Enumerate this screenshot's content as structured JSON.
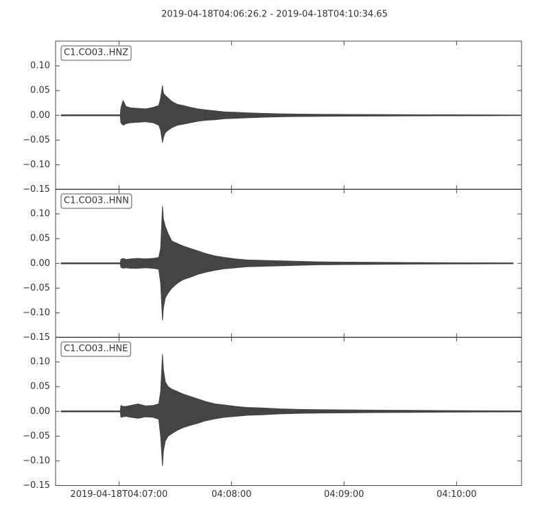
{
  "title": "2019-04-18T04:06:26.2  -  2019-04-18T04:10:34.65",
  "chart_data": [
    {
      "type": "waveform",
      "title": "C1.CO03..HNZ",
      "color": "#444444",
      "x": [
        3,
        34.5,
        34.8,
        36,
        37.5,
        40,
        44,
        48,
        52,
        55,
        56,
        57,
        57.5,
        58.5,
        60,
        62,
        65,
        68,
        72,
        76,
        80,
        85,
        90,
        96,
        102,
        110,
        120,
        130,
        140,
        155,
        170,
        190,
        210,
        230,
        248
      ],
      "upper": [
        0.001,
        0.001,
        0.015,
        0.03,
        0.018,
        0.015,
        0.014,
        0.013,
        0.016,
        0.02,
        0.035,
        0.06,
        0.045,
        0.04,
        0.035,
        0.028,
        0.022,
        0.02,
        0.016,
        0.013,
        0.011,
        0.009,
        0.007,
        0.006,
        0.005,
        0.004,
        0.003,
        0.0025,
        0.002,
        0.0018,
        0.0015,
        0.0012,
        0.001,
        0.0008,
        0.0005
      ],
      "lower": [
        -0.001,
        -0.001,
        -0.015,
        -0.02,
        -0.017,
        -0.015,
        -0.014,
        -0.013,
        -0.015,
        -0.02,
        -0.03,
        -0.055,
        -0.045,
        -0.035,
        -0.03,
        -0.025,
        -0.02,
        -0.018,
        -0.015,
        -0.012,
        -0.01,
        -0.009,
        -0.007,
        -0.006,
        -0.005,
        -0.004,
        -0.003,
        -0.0025,
        -0.002,
        -0.0018,
        -0.0015,
        -0.0012,
        -0.001,
        -0.0008,
        -0.0005
      ],
      "xlim": [
        0,
        248.45
      ],
      "xticks": [
        33.8,
        93.8,
        153.8,
        213.8
      ],
      "ylim": [
        -0.15,
        0.15
      ],
      "yticks": [
        {
          "value": -0.15,
          "label": "−0.15"
        },
        {
          "value": -0.1,
          "label": "−0.10"
        },
        {
          "value": -0.05,
          "label": "−0.05"
        },
        {
          "value": 0,
          "label": "0.00"
        },
        {
          "value": 0.05,
          "label": "0.05"
        },
        {
          "value": 0.1,
          "label": "0.10"
        }
      ]
    },
    {
      "type": "waveform",
      "title": "C1.CO03..HNN",
      "color": "#444444",
      "x": [
        3,
        34.5,
        34.8,
        36,
        37.5,
        40,
        44,
        48,
        52,
        55,
        56,
        57,
        57.5,
        58.5,
        60,
        62,
        65,
        68,
        72,
        76,
        80,
        85,
        90,
        96,
        102,
        110,
        120,
        130,
        140,
        155,
        170,
        190,
        210,
        230,
        244
      ],
      "upper": [
        0.001,
        0.001,
        0.008,
        0.01,
        0.008,
        0.009,
        0.01,
        0.009,
        0.01,
        0.012,
        0.03,
        0.115,
        0.09,
        0.075,
        0.06,
        0.045,
        0.04,
        0.035,
        0.03,
        0.025,
        0.02,
        0.015,
        0.012,
        0.009,
        0.007,
        0.006,
        0.005,
        0.004,
        0.003,
        0.0025,
        0.002,
        0.0015,
        0.0012,
        0.001,
        0.0008
      ],
      "lower": [
        -0.001,
        -0.001,
        -0.008,
        -0.01,
        -0.009,
        -0.01,
        -0.01,
        -0.009,
        -0.01,
        -0.012,
        -0.04,
        -0.115,
        -0.09,
        -0.07,
        -0.06,
        -0.05,
        -0.04,
        -0.033,
        -0.028,
        -0.022,
        -0.018,
        -0.014,
        -0.011,
        -0.009,
        -0.007,
        -0.006,
        -0.005,
        -0.004,
        -0.003,
        -0.0025,
        -0.002,
        -0.0015,
        -0.0012,
        -0.001,
        -0.0008
      ],
      "xlim": [
        0,
        248.45
      ],
      "xticks": [
        33.8,
        93.8,
        153.8,
        213.8
      ],
      "ylim": [
        -0.15,
        0.15
      ],
      "yticks": [
        {
          "value": -0.15,
          "label": "−0.15"
        },
        {
          "value": -0.1,
          "label": "−0.10"
        },
        {
          "value": -0.05,
          "label": "−0.05"
        },
        {
          "value": 0,
          "label": "0.00"
        },
        {
          "value": 0.05,
          "label": "0.05"
        },
        {
          "value": 0.1,
          "label": "0.10"
        }
      ]
    },
    {
      "type": "waveform",
      "title": "C1.CO03..HNE",
      "color": "#444444",
      "x": [
        3,
        34.5,
        34.8,
        36,
        37.5,
        40,
        44,
        48,
        52,
        55,
        56,
        57,
        57.5,
        58.5,
        60,
        62,
        65,
        68,
        72,
        76,
        80,
        85,
        90,
        96,
        102,
        110,
        120,
        130,
        140,
        155,
        170,
        190,
        210,
        230,
        248
      ],
      "upper": [
        0.001,
        0.001,
        0.012,
        0.01,
        0.01,
        0.012,
        0.015,
        0.011,
        0.012,
        0.015,
        0.04,
        0.115,
        0.085,
        0.06,
        0.05,
        0.045,
        0.04,
        0.035,
        0.03,
        0.025,
        0.02,
        0.015,
        0.013,
        0.01,
        0.008,
        0.007,
        0.005,
        0.004,
        0.0035,
        0.003,
        0.0025,
        0.002,
        0.0015,
        0.0012,
        0.001
      ],
      "lower": [
        -0.001,
        -0.001,
        -0.012,
        -0.011,
        -0.01,
        -0.012,
        -0.014,
        -0.011,
        -0.012,
        -0.016,
        -0.05,
        -0.11,
        -0.08,
        -0.06,
        -0.05,
        -0.045,
        -0.038,
        -0.033,
        -0.028,
        -0.024,
        -0.019,
        -0.015,
        -0.012,
        -0.01,
        -0.008,
        -0.007,
        -0.005,
        -0.004,
        -0.0035,
        -0.003,
        -0.0025,
        -0.002,
        -0.0015,
        -0.0012,
        -0.001
      ],
      "xlim": [
        0,
        248.45
      ],
      "xticks": [
        {
          "value": 33.8,
          "label": "2019-04-18T04:07:00"
        },
        {
          "value": 93.8,
          "label": "04:08:00"
        },
        {
          "value": 153.8,
          "label": "04:09:00"
        },
        {
          "value": 213.8,
          "label": "04:10:00"
        }
      ],
      "ylim": [
        -0.15,
        0.15
      ],
      "yticks": [
        {
          "value": -0.15,
          "label": "−0.15"
        },
        {
          "value": -0.1,
          "label": "−0.10"
        },
        {
          "value": -0.05,
          "label": "−0.05"
        },
        {
          "value": 0,
          "label": "0.00"
        },
        {
          "value": 0.05,
          "label": "0.05"
        },
        {
          "value": 0.1,
          "label": "0.10"
        }
      ]
    }
  ]
}
